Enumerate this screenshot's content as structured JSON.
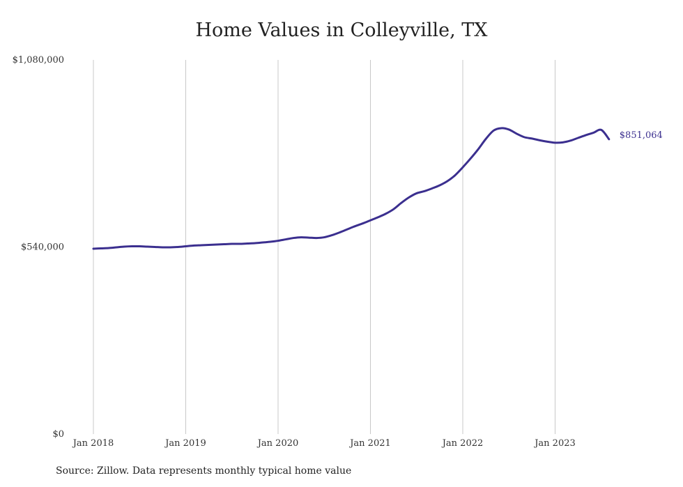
{
  "title": "Home Values in Colleyville, TX",
  "source": "Source: Zillow. Data represents monthly typical home value",
  "chart_data": {
    "type": "line",
    "title": "Home Values in Colleyville, TX",
    "xlabel": "",
    "ylabel": "",
    "ylim": [
      0,
      1080000
    ],
    "y_ticks": [
      "$0",
      "$540,000",
      "$1,080,000"
    ],
    "y_tick_values": [
      0,
      540000,
      1080000
    ],
    "x_ticks": [
      "Jan 2018",
      "Jan 2019",
      "Jan 2020",
      "Jan 2021",
      "Jan 2022",
      "Jan 2023"
    ],
    "grid": "vertical",
    "line_color": "#3b2f8f",
    "end_label": "$851,064",
    "series": [
      {
        "x": [
          "2018-01",
          "2018-02",
          "2018-03",
          "2018-04",
          "2018-05",
          "2018-06",
          "2018-07",
          "2018-08",
          "2018-09",
          "2018-10",
          "2018-11",
          "2018-12",
          "2019-01",
          "2019-02",
          "2019-03",
          "2019-04",
          "2019-05",
          "2019-06",
          "2019-07",
          "2019-08",
          "2019-09",
          "2019-10",
          "2019-11",
          "2019-12",
          "2020-01",
          "2020-02",
          "2020-03",
          "2020-04",
          "2020-05",
          "2020-06",
          "2020-07",
          "2020-08",
          "2020-09",
          "2020-10",
          "2020-11",
          "2020-12",
          "2021-01",
          "2021-02",
          "2021-03",
          "2021-04",
          "2021-05",
          "2021-06",
          "2021-07",
          "2021-08",
          "2021-09",
          "2021-10",
          "2021-11",
          "2021-12",
          "2022-01",
          "2022-02",
          "2022-03",
          "2022-04",
          "2022-05",
          "2022-06",
          "2022-07",
          "2022-08",
          "2022-09",
          "2022-10",
          "2022-11",
          "2022-12",
          "2023-01",
          "2023-02",
          "2023-03",
          "2023-04",
          "2023-05",
          "2023-06",
          "2023-07",
          "2023-08"
        ],
        "values": [
          535000,
          536000,
          537000,
          539000,
          541000,
          542000,
          542000,
          541000,
          540000,
          539000,
          539000,
          540000,
          542000,
          544000,
          545000,
          546000,
          547000,
          548000,
          549000,
          549000,
          550000,
          551000,
          553000,
          555000,
          558000,
          562000,
          566000,
          568000,
          567000,
          566000,
          568000,
          574000,
          582000,
          591000,
          600000,
          608000,
          617000,
          626000,
          636000,
          649000,
          667000,
          683000,
          695000,
          701000,
          709000,
          718000,
          730000,
          747000,
          770000,
          795000,
          822000,
          852000,
          876000,
          883000,
          879000,
          867000,
          857000,
          853000,
          848000,
          844000,
          841000,
          842000,
          847000,
          855000,
          863000,
          870000,
          878000,
          851064
        ]
      }
    ]
  }
}
